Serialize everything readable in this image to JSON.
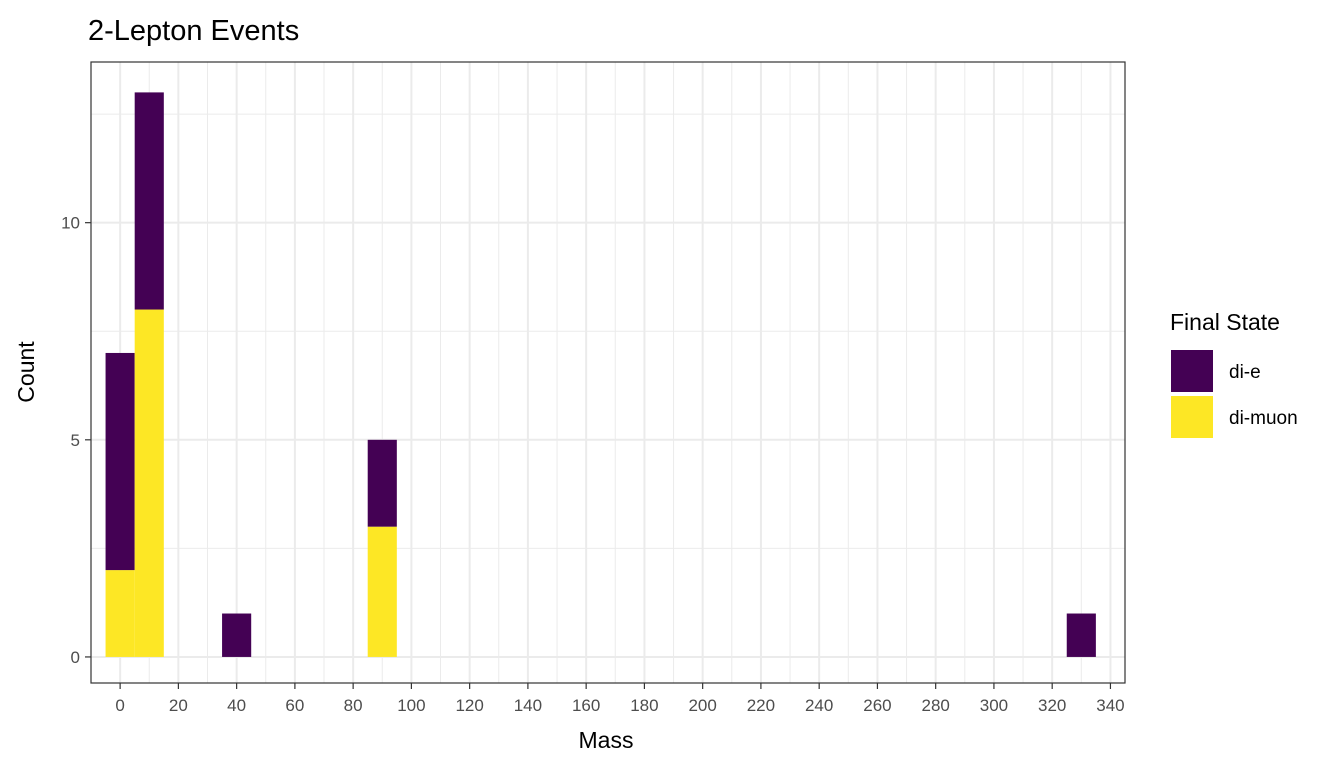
{
  "chart_data": {
    "type": "bar",
    "stacked": true,
    "title": "2-Lepton Events",
    "xlabel": "Mass",
    "ylabel": "Count",
    "bin_width": 10,
    "xlim": [
      -10,
      345
    ],
    "ylim": [
      -0.6,
      13.7
    ],
    "x_ticks": [
      0,
      20,
      40,
      60,
      80,
      100,
      120,
      140,
      160,
      180,
      200,
      220,
      240,
      260,
      280,
      300,
      320,
      340
    ],
    "y_ticks": [
      0,
      5,
      10
    ],
    "grid": true,
    "x": [
      0,
      10,
      40,
      90,
      330
    ],
    "series": [
      {
        "name": "di-muon",
        "color": "#FDE725",
        "values": [
          2,
          8,
          0,
          3,
          0
        ]
      },
      {
        "name": "di-e",
        "color": "#440154",
        "values": [
          5,
          5,
          1,
          2,
          1
        ]
      }
    ],
    "legend": {
      "title": "Final State",
      "position": "right",
      "entries": [
        {
          "label": "di-e",
          "color": "#440154"
        },
        {
          "label": "di-muon",
          "color": "#FDE725"
        }
      ]
    }
  }
}
